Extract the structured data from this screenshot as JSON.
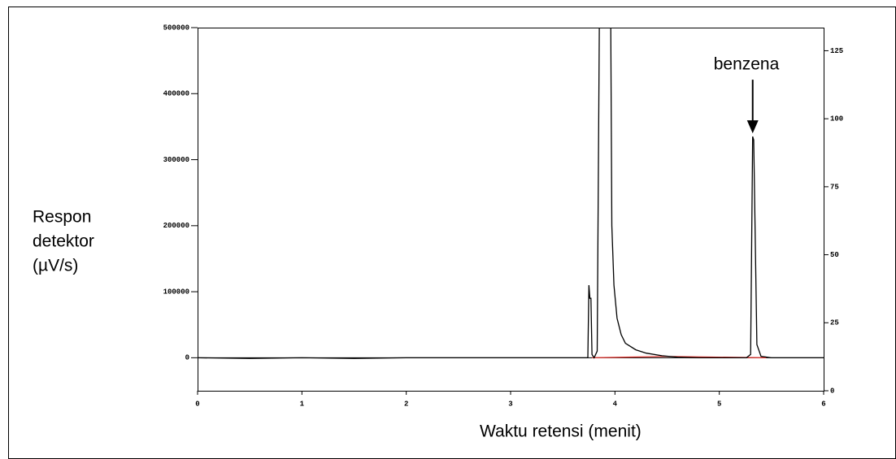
{
  "chart_data": {
    "type": "line",
    "ylabel": [
      "Respon",
      "detektor",
      "(µV/s)"
    ],
    "xlabel": "Waktu retensi (menit)",
    "x": [
      0,
      0.5,
      1,
      1.5,
      2,
      2.5,
      3,
      3.5,
      3.74,
      3.75,
      3.76,
      3.77,
      3.78,
      3.8,
      3.83,
      3.85,
      3.96,
      3.97,
      3.99,
      4.02,
      4.06,
      4.1,
      4.2,
      4.3,
      4.45,
      4.6,
      4.8,
      5.1,
      5.26,
      5.3,
      5.32,
      5.33,
      5.36,
      5.4,
      5.5,
      6
    ],
    "values": [
      0,
      -1000,
      0,
      -1000,
      0,
      0,
      0,
      0,
      0,
      110000,
      90000,
      90000,
      5000,
      0,
      10000,
      500000,
      500000,
      200000,
      110000,
      60000,
      35000,
      22000,
      12000,
      7000,
      3000,
      1000,
      0,
      0,
      0,
      5000,
      335000,
      330000,
      20000,
      2000,
      0,
      0
    ],
    "color": "#000000",
    "baseline": {
      "x": [
        3.78,
        4.5,
        5.45
      ],
      "values": [
        0,
        2000,
        0
      ],
      "color": "#e0302a"
    },
    "annotation": {
      "text": "benzena",
      "x": 5.32,
      "y": 335000
    },
    "xlim": [
      0,
      6
    ],
    "xticks": [
      0,
      1,
      2,
      3,
      4,
      5,
      6
    ],
    "ylim": [
      -50000,
      500000
    ],
    "yticks": [
      0,
      100000,
      200000,
      300000,
      400000,
      500000
    ],
    "y2lim": [
      0,
      133.5
    ],
    "y2ticks": [
      0,
      25,
      50,
      75,
      100,
      125
    ]
  }
}
